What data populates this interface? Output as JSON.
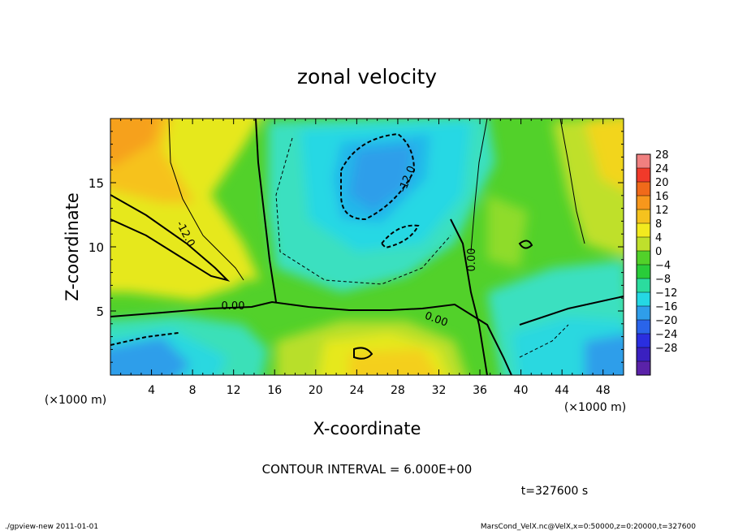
{
  "chart_data": {
    "type": "heatmap",
    "title": "zonal velocity",
    "xlabel": "X-coordinate",
    "ylabel": "Z-coordinate",
    "x_unit": "(×1000 m)",
    "z_unit": "(×1000 m)",
    "xlim": [
      0,
      50
    ],
    "ylim": [
      0,
      20
    ],
    "x_ticks": [
      4,
      8,
      12,
      16,
      20,
      24,
      28,
      32,
      36,
      40,
      44,
      48
    ],
    "y_ticks": [
      5,
      10,
      15
    ],
    "colorbar": {
      "levels": [
        28,
        24,
        20,
        16,
        12,
        8,
        4,
        0,
        -4,
        -8,
        -12,
        -16,
        -20,
        -24,
        -28
      ],
      "colors_top_to_bottom": [
        "#f08080",
        "#f03a2a",
        "#f06a1a",
        "#f7971c",
        "#f5c21e",
        "#f2ea1f",
        "#bfe02c",
        "#52d12a",
        "#29cc3a",
        "#2bdc9e",
        "#25d8e4",
        "#2f9eea",
        "#2a64ea",
        "#2a2ee0",
        "#3a20c0",
        "#5a22a8"
      ]
    },
    "contour_labels": [
      "-12.0",
      "-12.0",
      "0.00",
      "0.00",
      "0.00"
    ],
    "contour_interval": "CONTOUR INTERVAL = 6.000E+00",
    "time": "t=327600 s"
  },
  "footer": {
    "left": "./gpview-new  2011-01-01",
    "right": "MarsCond_VelX.nc@VelX,x=0:50000,z=0:20000,t=327600"
  }
}
